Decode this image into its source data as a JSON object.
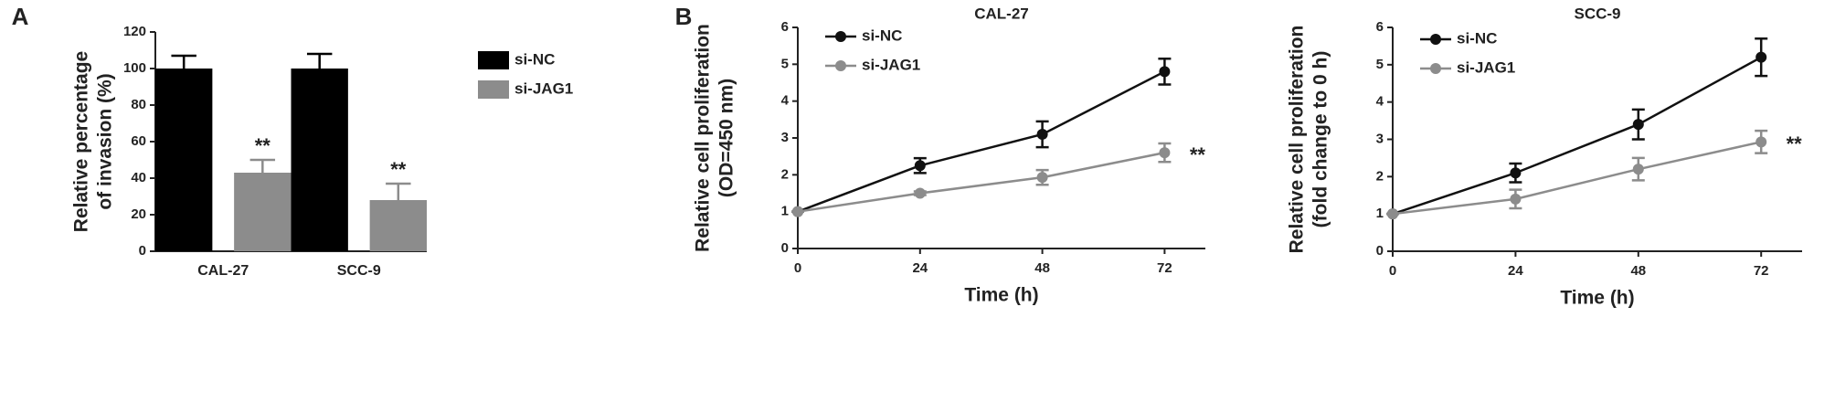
{
  "chart_data": [
    {
      "type": "bar",
      "panel_label": "A",
      "ylabel": [
        "Relative percentage",
        "of invasion (%)"
      ],
      "categories": [
        "CAL-27",
        "SCC-9"
      ],
      "series": [
        {
          "name": "si-NC",
          "color": "#000000",
          "values": [
            100,
            100
          ],
          "errors": [
            7,
            8
          ]
        },
        {
          "name": "si-JAG1",
          "color": "#8c8c8c",
          "values": [
            43,
            28
          ],
          "errors": [
            7,
            9
          ],
          "annotations": [
            "**",
            "**"
          ]
        }
      ],
      "ylim": [
        0,
        120
      ],
      "yticks": [
        0,
        20,
        40,
        60,
        80,
        100,
        120
      ]
    },
    {
      "type": "line",
      "panel_label": "B",
      "title": "CAL-27",
      "ylabel": [
        "Relative cell proliferation",
        "(OD=450 nm)"
      ],
      "xlabel": "Time (h)",
      "x": [
        0,
        24,
        48,
        72
      ],
      "series": [
        {
          "name": "si-NC",
          "color": "#111111",
          "values": [
            1,
            2.25,
            3.1,
            4.8
          ],
          "errors": [
            0,
            0.2,
            0.35,
            0.35
          ]
        },
        {
          "name": "si-JAG1",
          "color": "#8c8c8c",
          "values": [
            1,
            1.5,
            1.93,
            2.6
          ],
          "errors": [
            0,
            0.05,
            0.2,
            0.25
          ],
          "annotations": [
            null,
            null,
            null,
            "**"
          ]
        }
      ],
      "xlim": [
        0,
        80
      ],
      "xticks": [
        0,
        24,
        48,
        72
      ],
      "ylim": [
        0,
        6
      ],
      "yticks": [
        0,
        1,
        2,
        3,
        4,
        5,
        6
      ]
    },
    {
      "type": "line",
      "title": "SCC-9",
      "ylabel": [
        "Relative cell proliferation",
        "(fold change to 0 h)"
      ],
      "xlabel": "Time (h)",
      "x": [
        0,
        24,
        48,
        72
      ],
      "series": [
        {
          "name": "si-NC",
          "color": "#111111",
          "values": [
            1,
            2.1,
            3.4,
            5.2
          ],
          "errors": [
            0,
            0.25,
            0.4,
            0.5
          ]
        },
        {
          "name": "si-JAG1",
          "color": "#8c8c8c",
          "values": [
            1,
            1.4,
            2.2,
            2.93
          ],
          "errors": [
            0,
            0.25,
            0.3,
            0.3
          ],
          "annotations": [
            null,
            null,
            null,
            "**"
          ]
        }
      ],
      "xlim": [
        0,
        80
      ],
      "xticks": [
        0,
        24,
        48,
        72
      ],
      "ylim": [
        0,
        6
      ],
      "yticks": [
        0,
        1,
        2,
        3,
        4,
        5,
        6
      ]
    }
  ]
}
